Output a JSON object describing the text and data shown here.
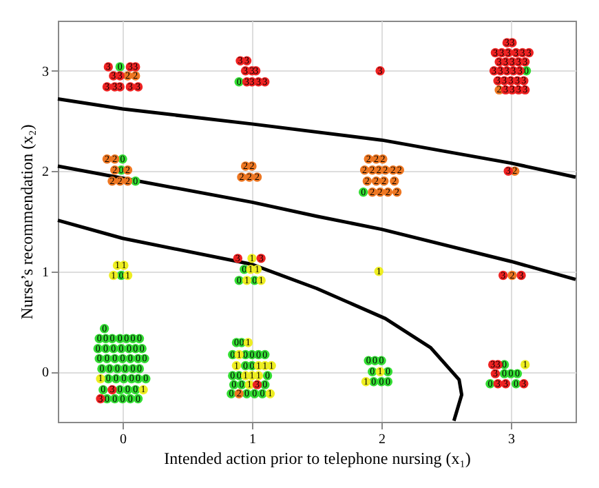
{
  "chart_data": {
    "type": "scatter",
    "xlabel": "Intended action prior to telephone nursing (x₁)",
    "ylabel": "Nurse’s recommendation (x₂)",
    "xlim": [
      -0.5,
      3.5
    ],
    "ylim": [
      -0.5,
      3.5
    ],
    "xticks": [
      0,
      1,
      2,
      3
    ],
    "yticks": [
      0,
      1,
      2,
      3
    ],
    "grid": true,
    "marker": "circle",
    "series": [
      {
        "type": "line",
        "marker": "none",
        "color": "#000000",
        "x": [
          -0.5,
          0,
          1,
          2,
          3,
          3.5
        ],
        "values": [
          2.72,
          2.62,
          2.47,
          2.31,
          2.08,
          1.94
        ]
      },
      {
        "type": "line",
        "marker": "none",
        "color": "#000000",
        "x": [
          -0.5,
          0,
          1,
          1.5,
          2,
          3,
          3.5
        ],
        "values": [
          2.05,
          1.93,
          1.69,
          1.55,
          1.42,
          1.1,
          0.92
        ]
      },
      {
        "type": "line",
        "marker": "none",
        "color": "#000000",
        "x": [
          -0.5,
          0,
          1,
          1.5,
          2.03,
          2.38,
          2.6,
          2.62,
          2.56
        ],
        "values": [
          1.51,
          1.33,
          1.07,
          0.83,
          0.53,
          0.24,
          -0.08,
          -0.23,
          -0.49
        ]
      },
      {
        "name": "0",
        "color": "#33dd33",
        "x": [
          -0.02,
          0.9,
          3.12,
          0.0,
          -0.01,
          0.1,
          1.86,
          -0.01,
          0.94,
          0.9,
          1.02,
          -0.14,
          -0.18,
          -0.13,
          -0.08,
          -0.02,
          0.03,
          0.08,
          0.13,
          -0.19,
          -0.13,
          -0.07,
          -0.01,
          0.05,
          0.1,
          0.15,
          -0.18,
          -0.12,
          -0.06,
          0.0,
          0.06,
          0.12,
          0.17,
          -0.16,
          -0.1,
          -0.04,
          0.02,
          0.08,
          0.13,
          -0.11,
          -0.05,
          0.01,
          0.07,
          0.12,
          0.18,
          -0.15,
          -0.02,
          0.04,
          0.1,
          -0.12,
          -0.06,
          0.0,
          0.06,
          0.12,
          0.88,
          0.92,
          0.85,
          0.95,
          1.0,
          1.05,
          1.1,
          0.95,
          1.0,
          0.85,
          0.9,
          1.12,
          0.86,
          0.92,
          1.1,
          0.84,
          0.96,
          1.02,
          1.08,
          1.9,
          1.95,
          2.0,
          1.93,
          2.05,
          1.94,
          2.0,
          2.05,
          2.95,
          2.95,
          3.0,
          3.05,
          2.84,
          3.04
        ],
        "values": [
          3.04,
          2.89,
          3.0,
          2.12,
          2.01,
          1.9,
          1.79,
          0.96,
          1.02,
          0.91,
          0.91,
          0.43,
          0.33,
          0.33,
          0.33,
          0.33,
          0.33,
          0.33,
          0.33,
          0.23,
          0.23,
          0.23,
          0.23,
          0.23,
          0.23,
          0.23,
          0.13,
          0.13,
          0.13,
          0.13,
          0.13,
          0.13,
          0.13,
          0.03,
          0.03,
          0.03,
          0.03,
          0.03,
          0.03,
          -0.07,
          -0.07,
          -0.07,
          -0.07,
          -0.07,
          -0.07,
          -0.18,
          -0.18,
          -0.18,
          -0.18,
          -0.27,
          -0.27,
          -0.27,
          -0.27,
          -0.27,
          0.29,
          0.29,
          0.17,
          0.17,
          0.17,
          0.17,
          0.17,
          0.06,
          0.06,
          -0.04,
          -0.04,
          -0.04,
          -0.13,
          -0.13,
          -0.13,
          -0.22,
          -0.22,
          -0.22,
          -0.22,
          0.11,
          0.11,
          0.11,
          0.0,
          0.0,
          -0.1,
          -0.1,
          -0.1,
          0.07,
          -0.02,
          -0.02,
          -0.02,
          -0.12,
          -0.12
        ]
      },
      {
        "name": "1",
        "color": "#eeee22",
        "x": [
          -0.04,
          0.01,
          -0.07,
          0.04,
          1.0,
          0.99,
          1.04,
          0.96,
          1.07,
          1.98,
          -0.17,
          0.16,
          0.97,
          0.9,
          0.88,
          1.05,
          1.1,
          1.15,
          0.95,
          1.0,
          1.05,
          0.98,
          1.14,
          1.99,
          1.88,
          3.11
        ],
        "values": [
          1.06,
          1.06,
          0.96,
          0.96,
          1.13,
          1.02,
          1.02,
          0.91,
          0.91,
          1.0,
          -0.07,
          -0.18,
          0.29,
          0.17,
          0.06,
          0.06,
          0.06,
          0.06,
          -0.04,
          -0.04,
          -0.04,
          -0.13,
          -0.22,
          0.0,
          -0.1,
          0.07
        ]
      },
      {
        "name": "2",
        "color": "#ee7722",
        "x": [
          0.04,
          0.1,
          2.91,
          -0.12,
          -0.06,
          -0.06,
          0.04,
          -0.08,
          -0.02,
          0.04,
          0.95,
          1.0,
          0.92,
          0.98,
          1.04,
          1.9,
          1.96,
          2.01,
          1.87,
          1.93,
          1.98,
          2.03,
          2.09,
          2.14,
          1.89,
          1.96,
          2.02,
          2.1,
          1.93,
          1.99,
          2.05,
          2.12,
          3.03,
          3.01,
          0.9
        ],
        "values": [
          2.95,
          2.95,
          2.81,
          2.12,
          2.12,
          2.01,
          2.01,
          1.9,
          1.9,
          1.9,
          2.05,
          2.05,
          1.94,
          1.94,
          1.94,
          2.12,
          2.12,
          2.12,
          2.01,
          2.01,
          2.01,
          2.01,
          2.01,
          2.01,
          1.9,
          1.9,
          1.9,
          1.9,
          1.79,
          1.79,
          1.79,
          1.79,
          2.0,
          0.96,
          -0.22
        ]
      },
      {
        "name": "3",
        "color": "#ee2222",
        "x": [
          -0.11,
          0.06,
          0.1,
          -0.07,
          -0.02,
          -0.12,
          -0.06,
          -0.02,
          0.06,
          0.12,
          0.91,
          0.96,
          0.95,
          1.0,
          1.03,
          0.96,
          1.0,
          1.05,
          1.1,
          1.99,
          2.97,
          3.01,
          2.88,
          2.93,
          2.98,
          3.04,
          3.09,
          3.14,
          2.91,
          2.96,
          3.01,
          3.06,
          3.11,
          2.87,
          2.92,
          2.97,
          3.02,
          3.07,
          2.9,
          2.95,
          3.0,
          3.05,
          3.1,
          2.96,
          3.01,
          3.06,
          3.11,
          2.98,
          0.89,
          1.07,
          2.94,
          3.08,
          -0.08,
          -0.17,
          1.04,
          2.86,
          2.9,
          2.88,
          2.9,
          2.96,
          3.1
        ],
        "values": [
          3.04,
          3.04,
          3.04,
          2.95,
          2.95,
          2.84,
          2.84,
          2.84,
          2.84,
          2.84,
          3.1,
          3.1,
          3.0,
          3.0,
          3.0,
          2.89,
          2.89,
          2.89,
          2.89,
          3.0,
          3.28,
          3.28,
          3.18,
          3.18,
          3.18,
          3.18,
          3.18,
          3.18,
          3.09,
          3.09,
          3.09,
          3.09,
          3.09,
          3.0,
          3.0,
          3.0,
          3.0,
          3.0,
          2.9,
          2.9,
          2.9,
          2.9,
          2.9,
          2.81,
          2.81,
          2.81,
          2.81,
          2.0,
          1.13,
          1.13,
          0.96,
          0.96,
          -0.18,
          -0.27,
          -0.13,
          0.07,
          0.07,
          -0.02,
          -0.12,
          -0.12,
          -0.12
        ]
      }
    ]
  }
}
